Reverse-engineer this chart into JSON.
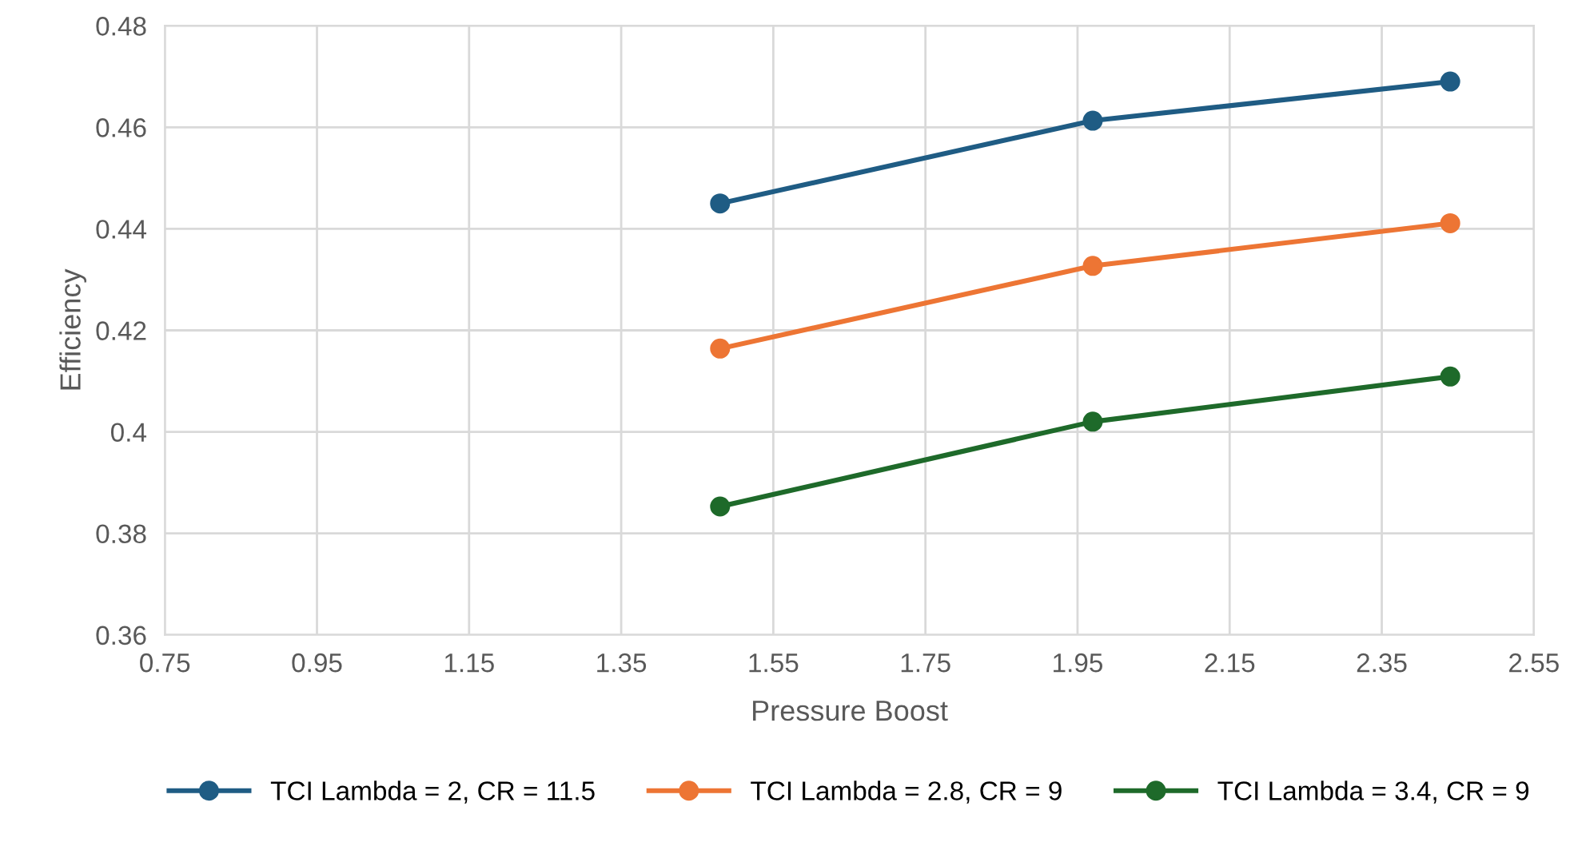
{
  "chart_data": {
    "type": "line",
    "xlabel": "Pressure Boost",
    "ylabel": "Efficiency",
    "x": [
      1.48,
      1.97,
      2.44
    ],
    "series": [
      {
        "name": "TCI Lambda = 2, CR = 11.5",
        "color": "#1f5c84",
        "values": [
          0.445,
          0.4613,
          0.469
        ]
      },
      {
        "name": "TCI Lambda = 2.8, CR = 9",
        "color": "#ed7534",
        "values": [
          0.4164,
          0.4327,
          0.4411
        ]
      },
      {
        "name": "TCI Lambda = 3.4, CR = 9",
        "color": "#1e6a2a",
        "values": [
          0.3853,
          0.402,
          0.4109
        ]
      }
    ],
    "xlim": [
      0.75,
      2.55
    ],
    "xticks": [
      0.75,
      0.95,
      1.15,
      1.35,
      1.55,
      1.75,
      1.95,
      2.15,
      2.35,
      2.55
    ],
    "ylim": [
      0.36,
      0.48
    ],
    "yticks": [
      0.36,
      0.38,
      0.4,
      0.42,
      0.44,
      0.46,
      0.48
    ],
    "grid": true,
    "legend": "bottom",
    "marker": "circle",
    "line_style": "solid"
  }
}
